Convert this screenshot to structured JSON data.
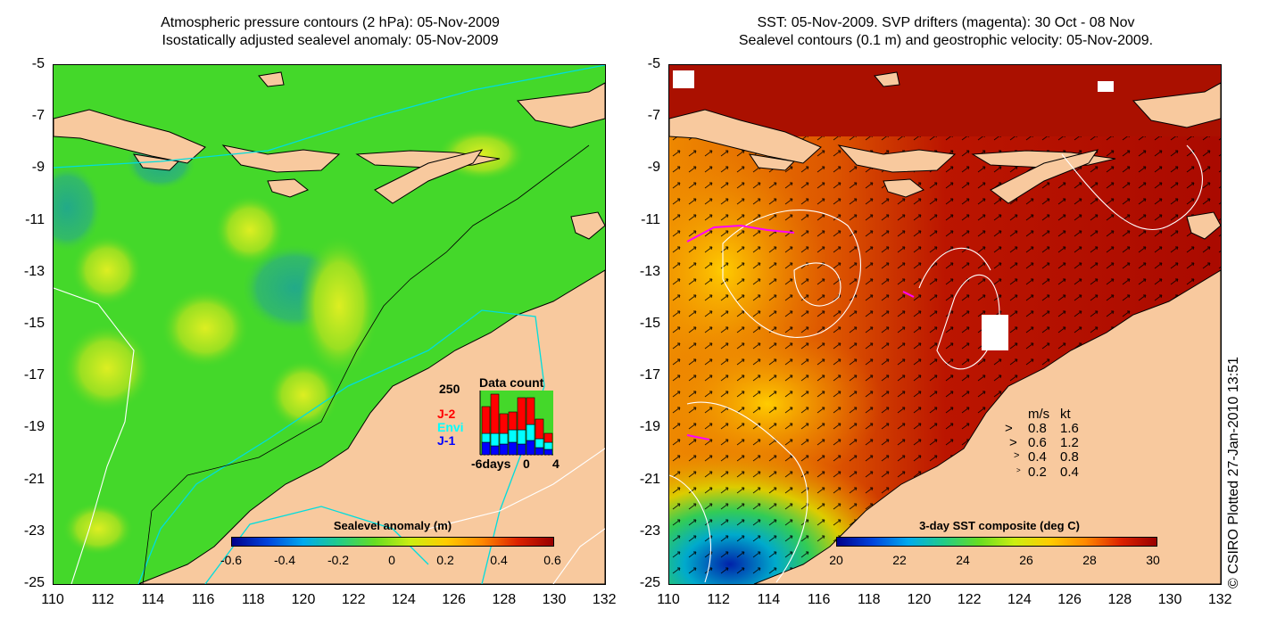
{
  "left": {
    "title_line1": "Atmospheric pressure contours (2 hPa): 05-Nov-2009",
    "title_line2": "Isostatically adjusted sealevel anomaly: 05-Nov-2009",
    "colorbar_title": "Sealevel anomaly (m)",
    "colorbar_ticks": [
      "-0.6",
      "-0.4",
      "-0.2",
      "0",
      "0.2",
      "0.4",
      "0.6"
    ],
    "colormap": [
      "#00008b",
      "#0044dd",
      "#00aaee",
      "#22cc88",
      "#66dd22",
      "#ccee11",
      "#ffcc00",
      "#ff8800",
      "#dd2200",
      "#990000"
    ],
    "data_count": {
      "title": "Data count",
      "ymax_label": "250",
      "satellites": [
        {
          "name": "J-2",
          "color": "#ff0000"
        },
        {
          "name": "Envi",
          "color": "#00ffff"
        },
        {
          "name": "J-1",
          "color": "#0000ff"
        }
      ],
      "x_labels": [
        "-6days",
        "0",
        "4"
      ]
    }
  },
  "right": {
    "title_line1": "SST: 05-Nov-2009. SVP drifters (magenta): 30 Oct - 08 Nov",
    "title_line2": "Sealevel contours (0.1 m) and geostrophic velocity: 05-Nov-2009.",
    "colorbar_title": "3-day SST composite (deg C)",
    "colorbar_ticks": [
      "20",
      "22",
      "24",
      "26",
      "28",
      "30"
    ],
    "colormap": [
      "#00008b",
      "#0044dd",
      "#00aaee",
      "#22cc88",
      "#66dd22",
      "#ccee11",
      "#ffcc00",
      "#ff8800",
      "#dd2200",
      "#990000"
    ],
    "velocity_legend": {
      "header_ms": "m/s",
      "header_kt": "kt",
      "rows": [
        {
          "ms": "0.8",
          "kt": "1.6"
        },
        {
          "ms": "0.6",
          "kt": "1.2"
        },
        {
          "ms": "0.4",
          "kt": "0.8"
        },
        {
          "ms": "0.2",
          "kt": "0.4"
        }
      ]
    }
  },
  "axes": {
    "y_ticks": [
      "-5",
      "-7",
      "-9",
      "-11",
      "-13",
      "-15",
      "-17",
      "-19",
      "-21",
      "-23",
      "-25"
    ],
    "x_ticks": [
      "110",
      "112",
      "114",
      "116",
      "118",
      "120",
      "122",
      "124",
      "126",
      "128",
      "130",
      "132"
    ]
  },
  "colors": {
    "land": "#f8c99e",
    "ocean_green": "#22dd22",
    "sst_warm": "#bb1100",
    "contour_white": "#ffffff",
    "contour_cyan": "#00dddd",
    "drifter_magenta": "#ff00ff"
  },
  "credit": "© CSIRO Plotted 27-Jan-2010 13:51"
}
